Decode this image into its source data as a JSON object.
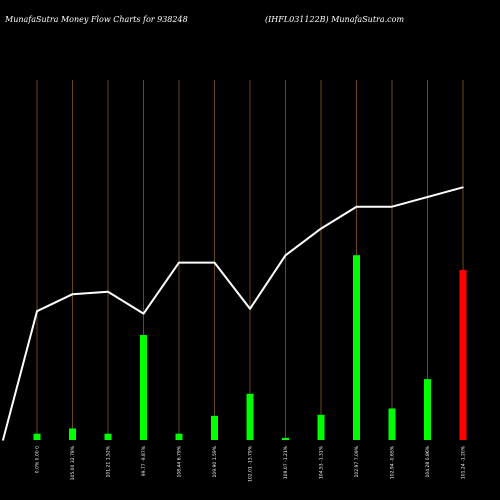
{
  "header": {
    "title": "MunafaSutra  Money Flow  Charts for 938248",
    "right_title": "(IHFL031122B) MunafaSutra.com"
  },
  "chart_data": {
    "type": "bar",
    "ylim": [
      0,
      100
    ],
    "grid": "vertical lines at each bar",
    "categories": [
      "0.0% 0.00 0",
      "105.00 32.78%",
      "101.21 1.52%",
      "99.77 -9.87%",
      "108.44 6.79%",
      "109.90 1.59%",
      "102.01 -13.79%",
      "109.07 -1.21%",
      "104.53 -1.31%",
      "102.97 7.09%",
      "102.94 -0.65%",
      "104.28 0.86%",
      "101.24 -1.20%"
    ],
    "series": [
      {
        "kind": "bars",
        "values": [
          3,
          5.5,
          3,
          50,
          3,
          11.5,
          22,
          1,
          12,
          88,
          15,
          29,
          81
        ],
        "colors": [
          "#00ff00",
          "#00ff00",
          "#00ff00",
          "#00ff00",
          "#00ff00",
          "#00ff00",
          "#00ff00",
          "#00ff00",
          "#00ff00",
          "#00ff00",
          "#00ff00",
          "#00ff00",
          "#ff0000"
        ]
      },
      {
        "kind": "line",
        "values": [
          0,
          53,
          60,
          61,
          52,
          73,
          73,
          54,
          76,
          87,
          96,
          96,
          104
        ]
      }
    ]
  }
}
